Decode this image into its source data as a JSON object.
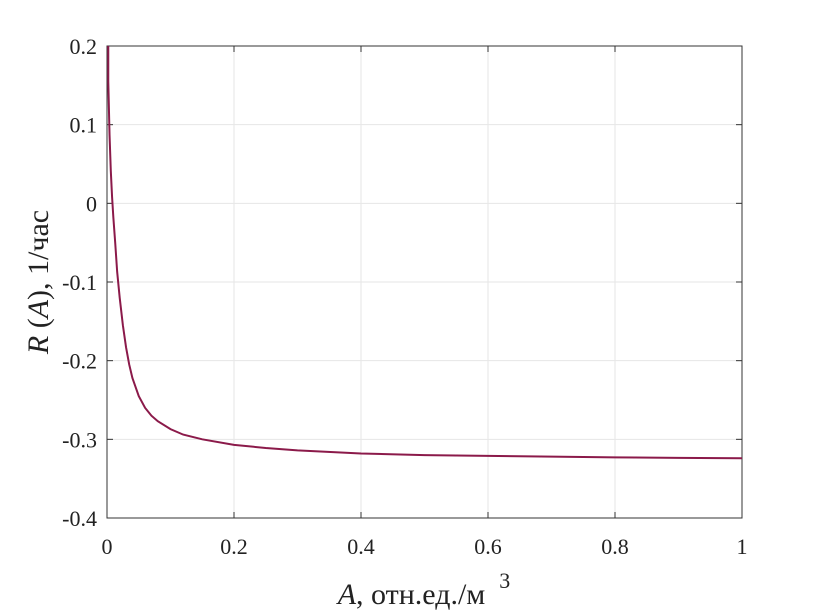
{
  "chart_data": {
    "type": "line",
    "title": "",
    "xlabel_var": "A",
    "xlabel_rest": ", отн.ед./м",
    "xlabel_sup": "3",
    "ylabel_var1": "R",
    "ylabel_mid": " (",
    "ylabel_var2": "A",
    "ylabel_rest": "), 1/час",
    "xlim": [
      0,
      1
    ],
    "ylim": [
      -0.4,
      0.2
    ],
    "xticks": [
      0,
      0.2,
      0.4,
      0.6,
      0.8,
      1
    ],
    "xtick_labels": [
      "0",
      "0.2",
      "0.4",
      "0.6",
      "0.8",
      "1"
    ],
    "yticks": [
      0.2,
      0.1,
      0,
      -0.1,
      -0.2,
      -0.3,
      -0.4
    ],
    "ytick_labels": [
      "0.2",
      "0.1",
      "0",
      "-0.1",
      "-0.2",
      "-0.3",
      "-0.4"
    ],
    "grid": true,
    "series": [
      {
        "color": "#8b1a4a",
        "x": [
          0.002,
          0.004,
          0.006,
          0.008,
          0.01,
          0.013,
          0.016,
          0.02,
          0.025,
          0.03,
          0.035,
          0.04,
          0.05,
          0.06,
          0.07,
          0.08,
          0.1,
          0.12,
          0.15,
          0.2,
          0.25,
          0.3,
          0.4,
          0.5,
          0.6,
          0.7,
          0.8,
          0.9,
          1.0
        ],
        "y": [
          0.155,
          0.087,
          0.041,
          0.008,
          -0.018,
          -0.051,
          -0.087,
          -0.12,
          -0.155,
          -0.183,
          -0.205,
          -0.222,
          -0.245,
          -0.26,
          -0.27,
          -0.277,
          -0.287,
          -0.294,
          -0.3,
          -0.307,
          -0.311,
          -0.314,
          -0.318,
          -0.32,
          -0.321,
          -0.322,
          -0.323,
          -0.3235,
          -0.324
        ]
      }
    ]
  }
}
